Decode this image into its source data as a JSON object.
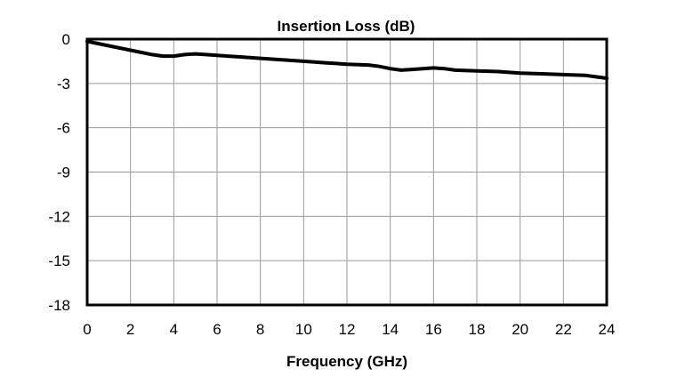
{
  "chart_data": {
    "type": "line",
    "title": "Insertion Loss (dB)",
    "xlabel": "Frequency (GHz)",
    "ylabel": "",
    "xlim": [
      0,
      24
    ],
    "ylim": [
      -18,
      0
    ],
    "x_ticks": [
      0,
      2,
      4,
      6,
      8,
      10,
      12,
      14,
      16,
      18,
      20,
      22,
      24
    ],
    "y_ticks": [
      0,
      -3,
      -6,
      -9,
      -12,
      -15,
      -18
    ],
    "x_tick_labels": [
      "0",
      "2",
      "4",
      "6",
      "8",
      "10",
      "12",
      "14",
      "16",
      "18",
      "20",
      "22",
      "24"
    ],
    "y_tick_labels": [
      "0",
      "-3",
      "-6",
      "-9",
      "-12",
      "-15",
      "-18"
    ],
    "grid": true,
    "series": [
      {
        "name": "Insertion Loss",
        "color": "#000000",
        "x": [
          0,
          0.5,
          1,
          2,
          3,
          3.5,
          4,
          4.5,
          5,
          5.5,
          6,
          7,
          8,
          9,
          10,
          11,
          12,
          13,
          13.5,
          14,
          14.5,
          15,
          15.5,
          16,
          16.5,
          17,
          18,
          19,
          20,
          21,
          22,
          23,
          23.5,
          24
        ],
        "values": [
          -0.15,
          -0.3,
          -0.45,
          -0.75,
          -1.05,
          -1.15,
          -1.15,
          -1.05,
          -1.0,
          -1.05,
          -1.1,
          -1.2,
          -1.3,
          -1.4,
          -1.5,
          -1.6,
          -1.7,
          -1.75,
          -1.85,
          -2.0,
          -2.1,
          -2.05,
          -2.0,
          -1.95,
          -2.0,
          -2.1,
          -2.15,
          -2.2,
          -2.3,
          -2.35,
          -2.4,
          -2.45,
          -2.55,
          -2.65
        ]
      }
    ]
  }
}
